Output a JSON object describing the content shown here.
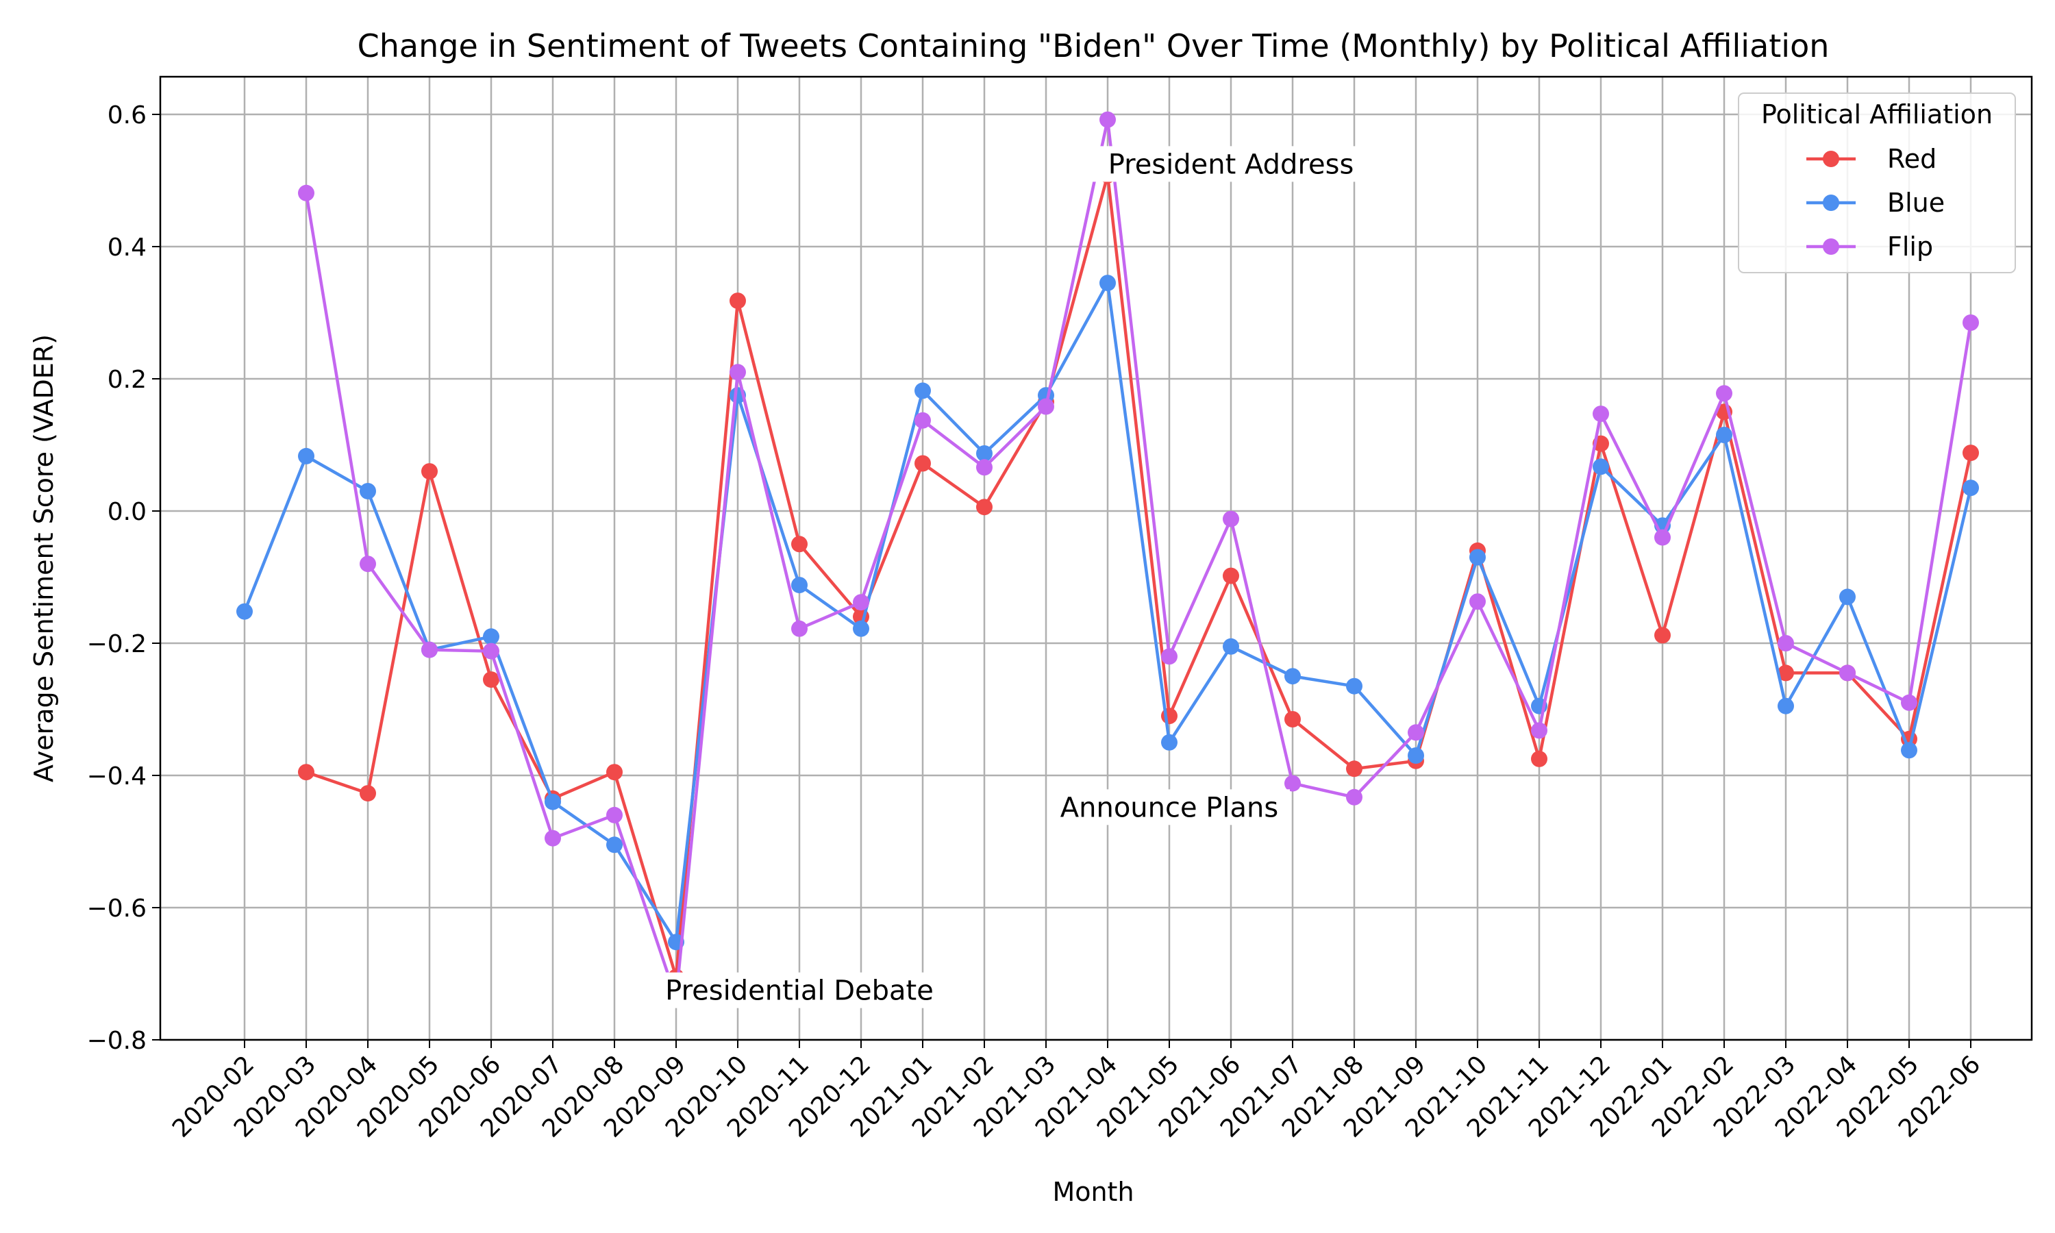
{
  "chart_data": {
    "type": "line",
    "title": "Change in Sentiment of Tweets Containing \"Biden\" Over Time (Monthly) by Political Affiliation",
    "xlabel": "Month",
    "ylabel": "Average Sentiment Score (VADER)",
    "ylim": [
      -0.8,
      0.6
    ],
    "yticks": [
      -0.8,
      -0.6,
      -0.4,
      -0.2,
      0.0,
      0.2,
      0.4,
      0.6
    ],
    "ytick_labels": [
      "−0.8",
      "−0.6",
      "−0.4",
      "−0.2",
      "0.0",
      "0.2",
      "0.4",
      "0.6"
    ],
    "grid": true,
    "legend_position": "top-right",
    "legend_title": "Political Affiliation",
    "categories": [
      "2020-02",
      "2020-03",
      "2020-04",
      "2020-05",
      "2020-06",
      "2020-07",
      "2020-08",
      "2020-09",
      "2020-10",
      "2020-11",
      "2020-12",
      "2021-01",
      "2021-02",
      "2021-03",
      "2021-04",
      "2021-05",
      "2021-06",
      "2021-07",
      "2021-08",
      "2021-09",
      "2021-10",
      "2021-11",
      "2021-12",
      "2022-01",
      "2022-02",
      "2022-03",
      "2022-04",
      "2022-05",
      "2022-06"
    ],
    "series": [
      {
        "name": "Red",
        "color": "#f04a4a",
        "values": [
          null,
          -0.395,
          -0.427,
          0.06,
          -0.255,
          -0.435,
          -0.395,
          -0.705,
          0.318,
          -0.05,
          -0.16,
          0.072,
          0.006,
          0.165,
          0.508,
          -0.31,
          -0.098,
          -0.315,
          -0.39,
          -0.378,
          -0.06,
          -0.375,
          0.102,
          -0.188,
          0.15,
          -0.245,
          -0.245,
          -0.345,
          0.088
        ]
      },
      {
        "name": "Blue",
        "color": "#4c8ff0",
        "values": [
          -0.152,
          0.083,
          0.03,
          -0.21,
          -0.19,
          -0.44,
          -0.505,
          -0.652,
          0.175,
          -0.112,
          -0.178,
          0.182,
          0.087,
          0.175,
          0.345,
          -0.35,
          -0.205,
          -0.25,
          -0.265,
          -0.37,
          -0.07,
          -0.295,
          0.067,
          -0.022,
          0.115,
          -0.295,
          -0.13,
          -0.362,
          0.035
        ]
      },
      {
        "name": "Flip",
        "color": "#c466f0",
        "values": [
          null,
          0.481,
          -0.08,
          -0.21,
          -0.212,
          -0.495,
          -0.46,
          -0.737,
          0.21,
          -0.178,
          -0.138,
          0.137,
          0.066,
          0.158,
          0.592,
          -0.22,
          -0.012,
          -0.412,
          -0.433,
          -0.335,
          -0.137,
          -0.332,
          0.147,
          -0.04,
          0.178,
          -0.2,
          -0.245,
          -0.29,
          0.285
        ]
      }
    ],
    "annotations": [
      {
        "text": "Presidential Debate",
        "x": "2020-10",
        "y": -0.725
      },
      {
        "text": "President Address",
        "x": "2021-05",
        "y": 0.525
      },
      {
        "text": "Announce Plans",
        "x": "2021-04",
        "y": -0.448
      }
    ]
  }
}
